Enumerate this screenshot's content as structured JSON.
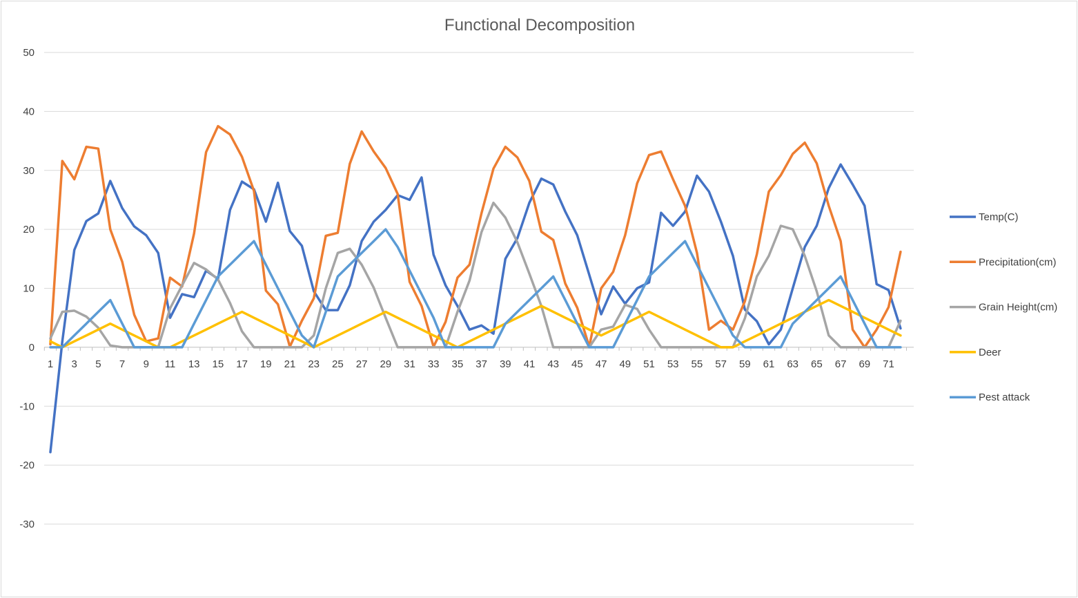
{
  "chart_data": {
    "type": "line",
    "title": "Functional Decomposition",
    "xlabel": "",
    "ylabel": "",
    "ylim": [
      -30,
      50
    ],
    "yticks": [
      50,
      40,
      30,
      20,
      10,
      0,
      -10,
      -20,
      -30
    ],
    "grid": true,
    "legend_position": "right",
    "x": [
      1,
      2,
      3,
      4,
      5,
      6,
      7,
      8,
      9,
      10,
      11,
      12,
      13,
      14,
      15,
      16,
      17,
      18,
      19,
      20,
      21,
      22,
      23,
      24,
      25,
      26,
      27,
      28,
      29,
      30,
      31,
      32,
      33,
      34,
      35,
      36,
      37,
      38,
      39,
      40,
      41,
      42,
      43,
      44,
      45,
      46,
      47,
      48,
      49,
      50,
      51,
      52,
      53,
      54,
      55,
      56,
      57,
      58,
      59,
      60,
      61,
      62,
      63,
      64,
      65,
      66,
      67,
      68,
      69,
      70,
      71,
      72
    ],
    "x_tick_labels": [
      "1",
      "3",
      "5",
      "7",
      "9",
      "11",
      "13",
      "15",
      "17",
      "19",
      "21",
      "23",
      "25",
      "27",
      "29",
      "31",
      "33",
      "35",
      "37",
      "39",
      "41",
      "43",
      "45",
      "47",
      "49",
      "51",
      "53",
      "55",
      "57",
      "59",
      "61",
      "63",
      "65",
      "67",
      "69",
      "71"
    ],
    "series": [
      {
        "name": "Temp(C)",
        "color": "#4472c4",
        "values": [
          -17.8,
          1,
          16.5,
          21.4,
          22.7,
          28.2,
          23.6,
          20.5,
          19,
          16,
          5,
          9,
          8.5,
          13,
          11.6,
          23.3,
          28.1,
          26.8,
          21.3,
          27.9,
          19.7,
          17.2,
          9.5,
          6.3,
          6.3,
          10.5,
          18,
          21.3,
          23.3,
          25.8,
          25,
          28.8,
          15.7,
          10.5,
          7,
          3,
          3.7,
          2.3,
          15,
          18.5,
          24.5,
          28.6,
          27.6,
          23,
          19,
          12.3,
          5.6,
          10.3,
          7.4,
          10,
          11,
          22.8,
          20.6,
          23,
          29.1,
          26.4,
          21.3,
          15.5,
          6.4,
          4.4,
          0.5,
          3,
          10,
          17,
          20.6,
          27,
          31,
          27.6,
          24,
          10.7,
          9.7,
          3.2
        ]
      },
      {
        "name": "Precipitation(cm)",
        "color": "#ed7d31",
        "values": [
          0.5,
          31.6,
          28.5,
          34,
          33.7,
          20,
          14.5,
          5.5,
          1,
          1.5,
          11.8,
          10.3,
          19.3,
          33.1,
          37.5,
          36.1,
          32.3,
          26.5,
          9.6,
          7.3,
          0.1,
          4.5,
          8.3,
          18.9,
          19.4,
          31.1,
          36.6,
          33.2,
          30.4,
          26,
          11.1,
          7,
          0.1,
          4.3,
          11.8,
          14,
          22.7,
          30.3,
          34,
          32.2,
          28.2,
          19.6,
          18.2,
          10.8,
          6.7,
          0.1,
          10,
          12.8,
          19,
          27.8,
          32.6,
          33.2,
          28.5,
          24,
          16,
          3,
          4.5,
          3,
          7.8,
          15.8,
          26.4,
          29.2,
          32.8,
          34.7,
          31.2,
          24,
          18,
          3,
          0,
          3,
          6.8,
          16.2
        ]
      },
      {
        "name": "Grain Height(cm)",
        "color": "#a5a5a5",
        "values": [
          1.5,
          6,
          6.2,
          5.2,
          3.3,
          0.3,
          0,
          0,
          0,
          0,
          6.6,
          10.5,
          14.3,
          13.2,
          11.5,
          7.5,
          2.7,
          0,
          0,
          0,
          0,
          0,
          2,
          10,
          16,
          16.7,
          14,
          10.1,
          5,
          0,
          0,
          0,
          0,
          0,
          6,
          11.3,
          19.5,
          24.5,
          22,
          17.8,
          12.5,
          7,
          0,
          0,
          0,
          0,
          3,
          3.5,
          7.2,
          6.5,
          3,
          0,
          0,
          0,
          0,
          0,
          0,
          0,
          4.9,
          12,
          15.5,
          20.6,
          20,
          15.5,
          9.5,
          2,
          0,
          0,
          0,
          0,
          0,
          4.5
        ]
      },
      {
        "name": "Deer",
        "color": "#ffc000",
        "values": [
          1,
          0,
          1,
          2,
          3,
          4,
          3,
          2,
          1,
          0,
          0,
          1,
          2,
          3,
          4,
          5,
          6,
          5,
          4,
          3,
          2,
          1,
          0,
          1,
          2,
          3,
          4,
          5,
          6,
          5,
          4,
          3,
          2,
          1,
          0,
          1,
          2,
          3,
          4,
          5,
          6,
          7,
          6,
          5,
          4,
          3,
          2,
          3,
          4,
          5,
          6,
          5,
          4,
          3,
          2,
          1,
          0,
          0,
          1,
          2,
          3,
          4,
          5,
          6,
          7,
          8,
          7,
          6,
          5,
          4,
          3,
          2
        ]
      },
      {
        "name": "Pest attack",
        "color": "#5b9bd5",
        "values": [
          0,
          0,
          2,
          4,
          6,
          8,
          4,
          0,
          0,
          0,
          0,
          0,
          4,
          8,
          12,
          14,
          16,
          18,
          14,
          10,
          6,
          2,
          0,
          6,
          12,
          14,
          16,
          18,
          20,
          17,
          13,
          9,
          5,
          0,
          0,
          0,
          0,
          0,
          4,
          6,
          8,
          10,
          12,
          8,
          4,
          0,
          0,
          0,
          4,
          8,
          12,
          14,
          16,
          18,
          14,
          10,
          6,
          2,
          0,
          0,
          0,
          0,
          4,
          6,
          8,
          10,
          12,
          8,
          4,
          0,
          0,
          0
        ]
      }
    ]
  }
}
